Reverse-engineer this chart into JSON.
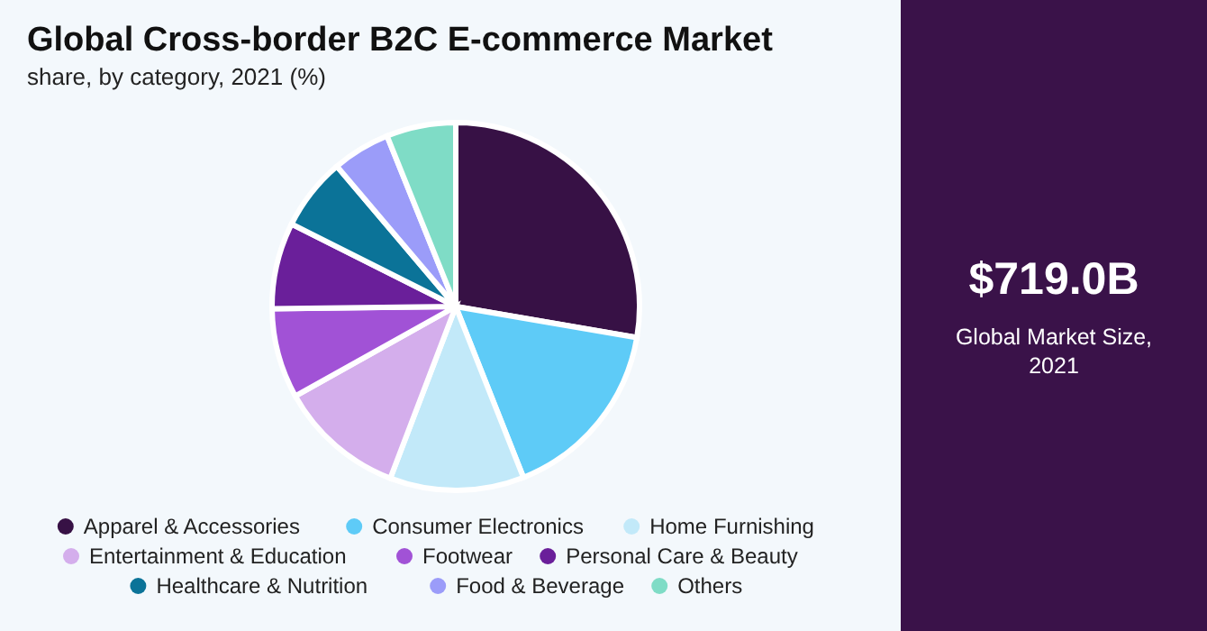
{
  "chart_data": {
    "type": "pie",
    "title": "Global Cross-border B2C E-commerce Market",
    "subtitle": "share, by category, 2021 (%)",
    "categories": [
      "Apparel & Accessories",
      "Consumer Electronics",
      "Home Furnishing",
      "Entertainment & Education",
      "Footwear",
      "Personal Care & Beauty",
      "Healthcare & Nutrition",
      "Food & Beverage",
      "Others"
    ],
    "values": [
      27.7,
      16.3,
      11.8,
      11.1,
      7.9,
      7.6,
      6.4,
      5.1,
      6.1
    ],
    "colors": [
      "#371145",
      "#5ecbf7",
      "#c2e9f9",
      "#d4aeec",
      "#a152d6",
      "#6a1f9a",
      "#0b7398",
      "#9b9cf9",
      "#7fdcc6"
    ],
    "legend": "bottom",
    "annotations": [
      "$719.0B",
      "Global Market Size, 2021"
    ]
  }
}
